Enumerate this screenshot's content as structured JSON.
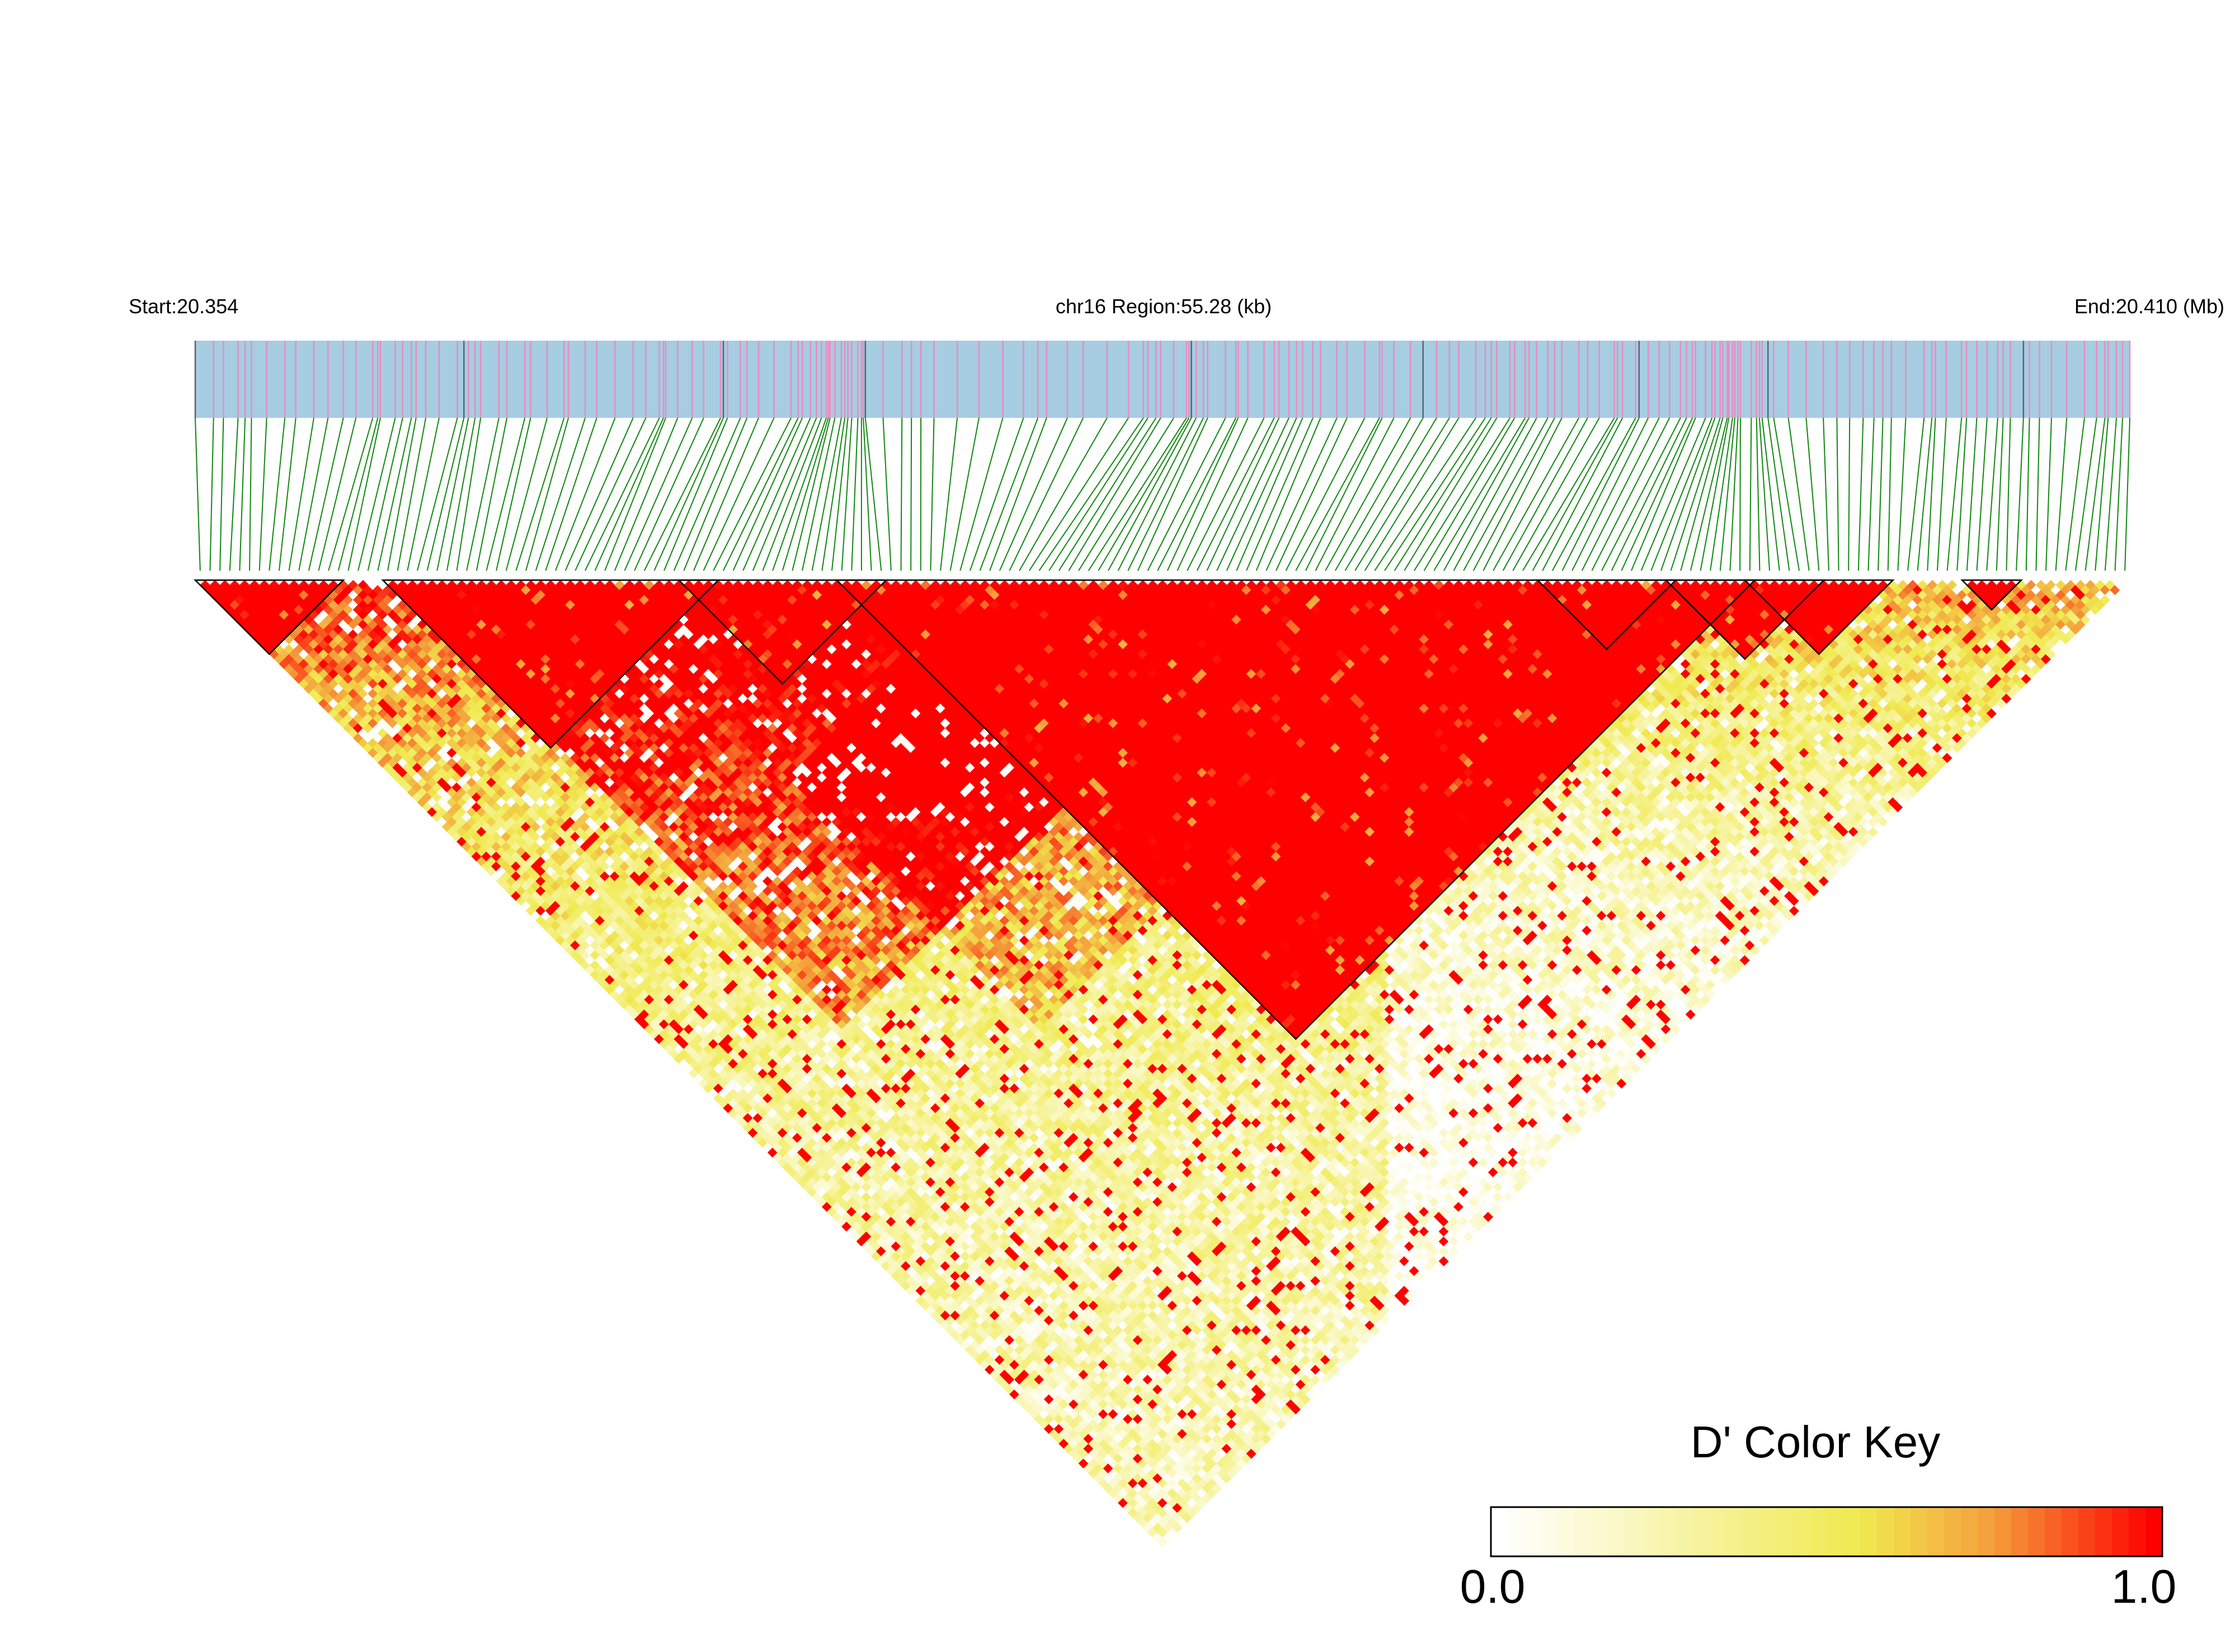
{
  "chart_data": {
    "type": "heatmap",
    "title": "",
    "header": {
      "start_label": "Start:20.354",
      "region_label": "chr16 Region:55.28 (kb)",
      "end_label": "End:20.410 (Mb)"
    },
    "region": {
      "chromosome": "chr16",
      "start_mb": 20.354,
      "end_mb": 20.41,
      "length_kb": 55.28
    },
    "marker_count": 196,
    "metric": "D'",
    "colorbar": {
      "title": "D' Color Key",
      "min_label": "0.0",
      "max_label": "1.0",
      "range": [
        0.0,
        1.0
      ],
      "colors": [
        "#ffffff",
        "#f4ec5a",
        "#f5a142",
        "#ff0000"
      ]
    },
    "ld_blocks": [
      {
        "first_snp": 1,
        "last_snp": 15
      },
      {
        "first_snp": 20,
        "last_snp": 53
      },
      {
        "first_snp": 50,
        "last_snp": 70
      },
      {
        "first_snp": 66,
        "last_snp": 158
      },
      {
        "first_snp": 137,
        "last_snp": 150
      },
      {
        "first_snp": 150,
        "last_snp": 165
      },
      {
        "first_snp": 158,
        "last_snp": 172
      },
      {
        "first_snp": 180,
        "last_snp": 185
      }
    ],
    "colors": {
      "track_background": "#a6cde2",
      "snp_tick": "#e88cc0",
      "connector_line": "#118811",
      "block_outline": "#000000"
    }
  }
}
